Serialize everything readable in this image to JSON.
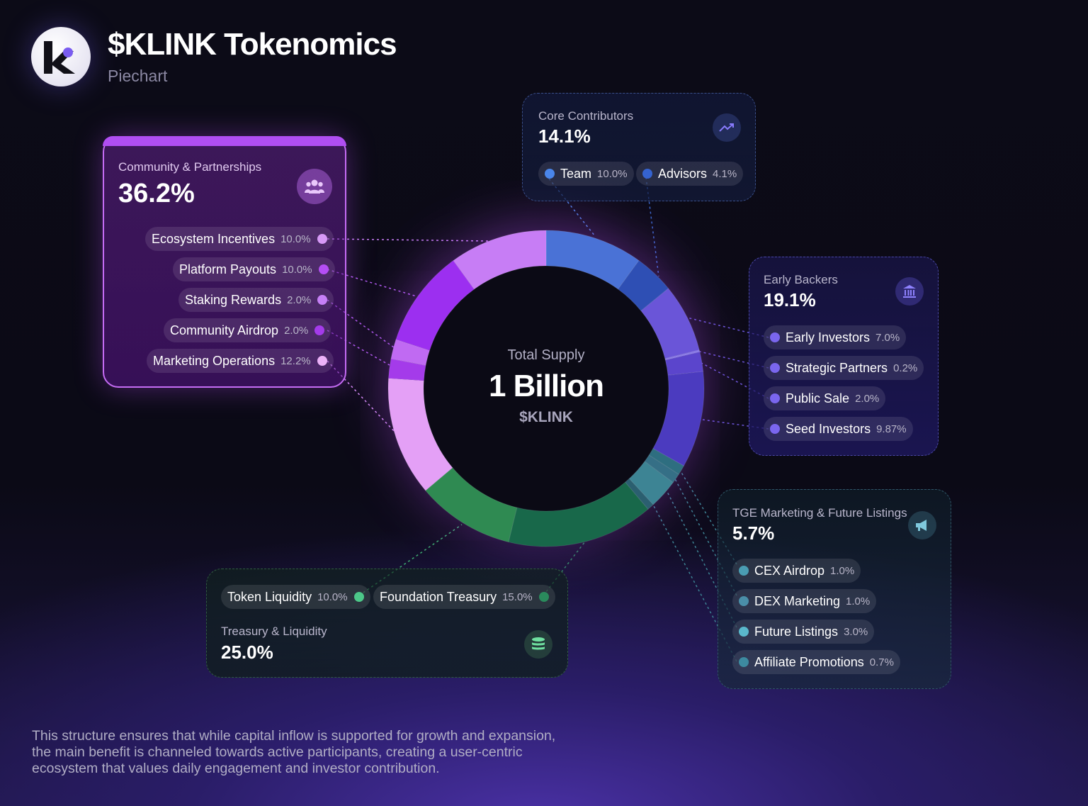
{
  "header": {
    "title": "$KLINK Tokenomics",
    "subtitle": "Piechart"
  },
  "center": {
    "label": "Total Supply",
    "value": "1 Billion",
    "ticker": "$KLINK"
  },
  "groups": {
    "community": {
      "label": "Community & Partnerships",
      "pct": "36.2%",
      "icon": "users-icon"
    },
    "core": {
      "label": "Core Contributors",
      "pct": "14.1%",
      "icon": "trend-up-icon"
    },
    "early": {
      "label": "Early Backers",
      "pct": "19.1%",
      "icon": "bank-icon"
    },
    "tge": {
      "label": "TGE Marketing & Future Listings",
      "pct": "5.7%",
      "icon": "megaphone-icon"
    },
    "treasury": {
      "label": "Treasury & Liquidity",
      "pct": "25.0%",
      "icon": "coins-icon"
    }
  },
  "items": {
    "ecosystem": {
      "name": "Ecosystem Incentives",
      "value": "10.0%"
    },
    "platform": {
      "name": "Platform Payouts",
      "value": "10.0%"
    },
    "staking": {
      "name": "Staking Rewards",
      "value": "2.0%"
    },
    "airdrop": {
      "name": "Community Airdrop",
      "value": "2.0%"
    },
    "marketing": {
      "name": "Marketing Operations",
      "value": "12.2%"
    },
    "team": {
      "name": "Team",
      "value": "10.0%"
    },
    "advisors": {
      "name": "Advisors",
      "value": "4.1%"
    },
    "early_investors": {
      "name": "Early Investors",
      "value": "7.0%"
    },
    "strategic": {
      "name": "Strategic Partners",
      "value": "0.2%"
    },
    "public_sale": {
      "name": "Public Sale",
      "value": "2.0%"
    },
    "seed": {
      "name": "Seed Investors",
      "value": "9.87%"
    },
    "cex": {
      "name": "CEX Airdrop",
      "value": "1.0%"
    },
    "dex": {
      "name": "DEX Marketing",
      "value": "1.0%"
    },
    "future": {
      "name": "Future Listings",
      "value": "3.0%"
    },
    "affiliate": {
      "name": "Affiliate Promotions",
      "value": "0.7%"
    },
    "token_liquidity": {
      "name": "Token Liquidity",
      "value": "10.0%"
    },
    "foundation": {
      "name": "Foundation Treasury",
      "value": "15.0%"
    }
  },
  "footer": {
    "text": "This structure ensures that while capital inflow is supported for growth and expansion, the main benefit is channeled towards active participants, creating a user-centric ecosystem that values daily engagement and investor contribution."
  },
  "chart_data": {
    "type": "pie",
    "title": "$KLINK Tokenomics",
    "subtitle": "Piechart",
    "center_label": "Total Supply",
    "total": "1 Billion",
    "unit": "$KLINK",
    "slices": [
      {
        "name": "Team",
        "value": 10.0,
        "group": "Core Contributors",
        "color": "#4a72d6"
      },
      {
        "name": "Advisors",
        "value": 4.1,
        "group": "Core Contributors",
        "color": "#2e4fb4"
      },
      {
        "name": "Early Investors",
        "value": 7.0,
        "group": "Early Backers",
        "color": "#6a55d8"
      },
      {
        "name": "Strategic Partners",
        "value": 0.2,
        "group": "Early Backers",
        "color": "#8a7ae8"
      },
      {
        "name": "Public Sale",
        "value": 2.0,
        "group": "Early Backers",
        "color": "#5b45cc"
      },
      {
        "name": "Seed Investors",
        "value": 9.87,
        "group": "Early Backers",
        "color": "#4b3bbf"
      },
      {
        "name": "CEX Airdrop",
        "value": 1.0,
        "group": "TGE Marketing & Future Listings",
        "color": "#2e6e80"
      },
      {
        "name": "DEX Marketing",
        "value": 1.0,
        "group": "TGE Marketing & Future Listings",
        "color": "#356f86"
      },
      {
        "name": "Future Listings",
        "value": 3.0,
        "group": "TGE Marketing & Future Listings",
        "color": "#3d8494"
      },
      {
        "name": "Affiliate Promotions",
        "value": 0.7,
        "group": "TGE Marketing & Future Listings",
        "color": "#2b5f70"
      },
      {
        "name": "Foundation Treasury",
        "value": 15.0,
        "group": "Treasury & Liquidity",
        "color": "#18684a"
      },
      {
        "name": "Token Liquidity",
        "value": 10.0,
        "group": "Treasury & Liquidity",
        "color": "#2f8a52"
      },
      {
        "name": "Marketing Operations",
        "value": 12.2,
        "group": "Community & Partnerships",
        "color": "#e4a0f6"
      },
      {
        "name": "Community Airdrop",
        "value": 2.0,
        "group": "Community & Partnerships",
        "color": "#a43bea"
      },
      {
        "name": "Staking Rewards",
        "value": 2.0,
        "group": "Community & Partnerships",
        "color": "#c06af2"
      },
      {
        "name": "Platform Payouts",
        "value": 10.0,
        "group": "Community & Partnerships",
        "color": "#9c2ff0"
      },
      {
        "name": "Ecosystem Incentives",
        "value": 10.0,
        "group": "Community & Partnerships",
        "color": "#c77df5"
      }
    ]
  }
}
